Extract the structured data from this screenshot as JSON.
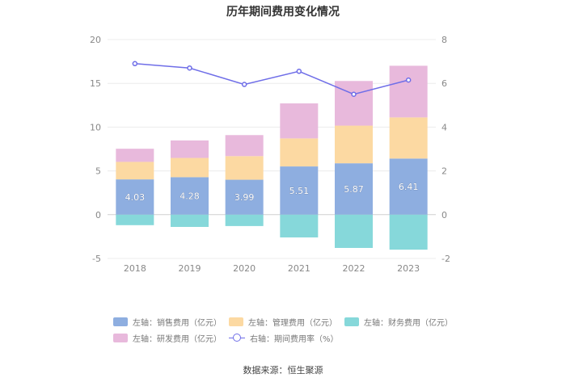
{
  "chart_data": {
    "type": "bar",
    "title": "历年期间费用变化情况",
    "categories": [
      "2018",
      "2019",
      "2020",
      "2021",
      "2022",
      "2023"
    ],
    "series": [
      {
        "name": "左轴：销售费用（亿元）",
        "axis": "left",
        "stack": "pos",
        "color": "#8eaee0",
        "values": [
          4.03,
          4.28,
          3.99,
          5.51,
          5.87,
          6.41
        ]
      },
      {
        "name": "左轴：管理费用（亿元）",
        "axis": "left",
        "stack": "pos",
        "color": "#fcd9a2",
        "values": [
          2.0,
          2.2,
          2.7,
          3.2,
          4.3,
          4.7
        ]
      },
      {
        "name": "左轴：财务费用（亿元）",
        "axis": "left",
        "stack": "neg",
        "color": "#86d8da",
        "values": [
          -1.2,
          -1.4,
          -1.3,
          -2.6,
          -3.8,
          -4.0
        ]
      },
      {
        "name": "左轴：研发费用（亿元）",
        "axis": "left",
        "stack": "pos",
        "color": "#e8b9dc",
        "values": [
          1.5,
          2.0,
          2.4,
          4.0,
          5.1,
          5.9
        ]
      },
      {
        "name": "右轴：期间费用率（%）",
        "axis": "right",
        "type": "line",
        "color": "#6f6ee8",
        "values": [
          6.9,
          6.7,
          5.95,
          6.55,
          5.5,
          6.15
        ]
      }
    ],
    "data_labels": [
      "4.03",
      "4.28",
      "3.99",
      "5.51",
      "5.87",
      "6.41"
    ],
    "y_left": {
      "min": -5,
      "max": 20,
      "ticks": [
        "-5",
        "0",
        "5",
        "10",
        "15",
        "20"
      ]
    },
    "y_right": {
      "min": -2,
      "max": 8,
      "ticks": [
        "-2",
        "0",
        "2",
        "4",
        "6",
        "8"
      ]
    },
    "legend_position": "bottom"
  },
  "source": "数据来源：恒生聚源"
}
